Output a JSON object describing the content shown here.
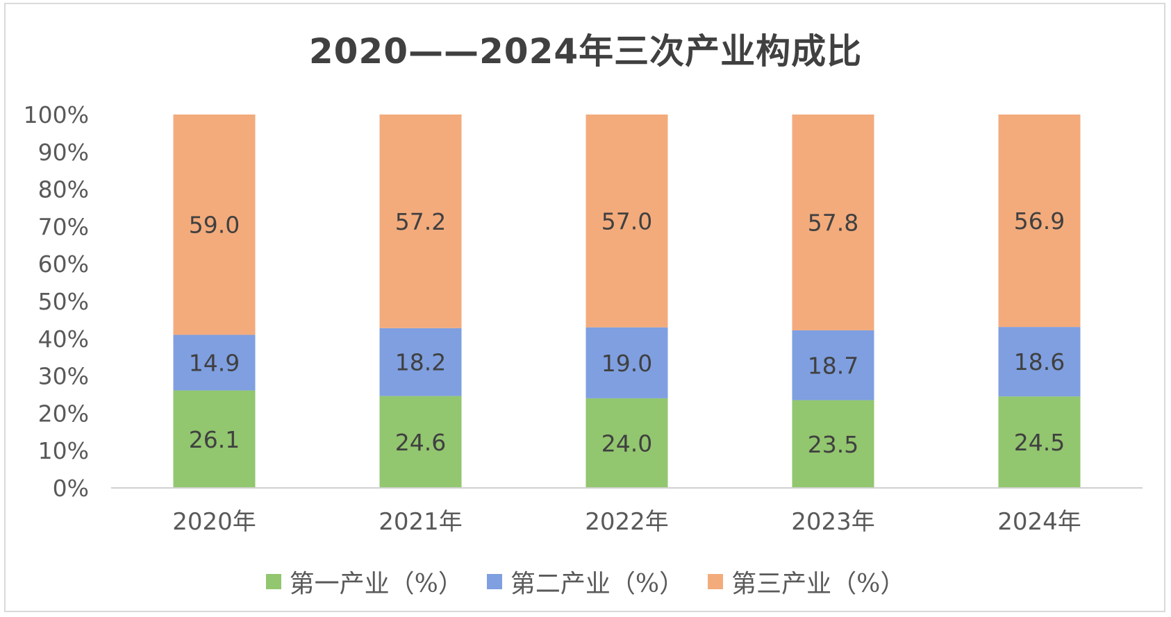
{
  "chart_data": {
    "type": "bar",
    "stacked": true,
    "title": "2020——2024年三次产业构成比",
    "categories": [
      "2020年",
      "2021年",
      "2022年",
      "2023年",
      "2024年"
    ],
    "ylim": [
      0,
      100
    ],
    "yticks": [
      "0%",
      "10%",
      "20%",
      "30%",
      "40%",
      "50%",
      "60%",
      "70%",
      "80%",
      "90%",
      "100%"
    ],
    "legend_position": "bottom",
    "series": [
      {
        "name": "第一产业（%）",
        "color": "#92c66f",
        "values": [
          26.1,
          24.6,
          24.0,
          23.5,
          24.5
        ]
      },
      {
        "name": "第二产业（%）",
        "color": "#7f9fe0",
        "values": [
          14.9,
          18.2,
          19.0,
          18.7,
          18.6
        ]
      },
      {
        "name": "第三产业（%）",
        "color": "#f3ab7c",
        "values": [
          59.0,
          57.2,
          57.0,
          57.8,
          56.9
        ]
      }
    ]
  }
}
